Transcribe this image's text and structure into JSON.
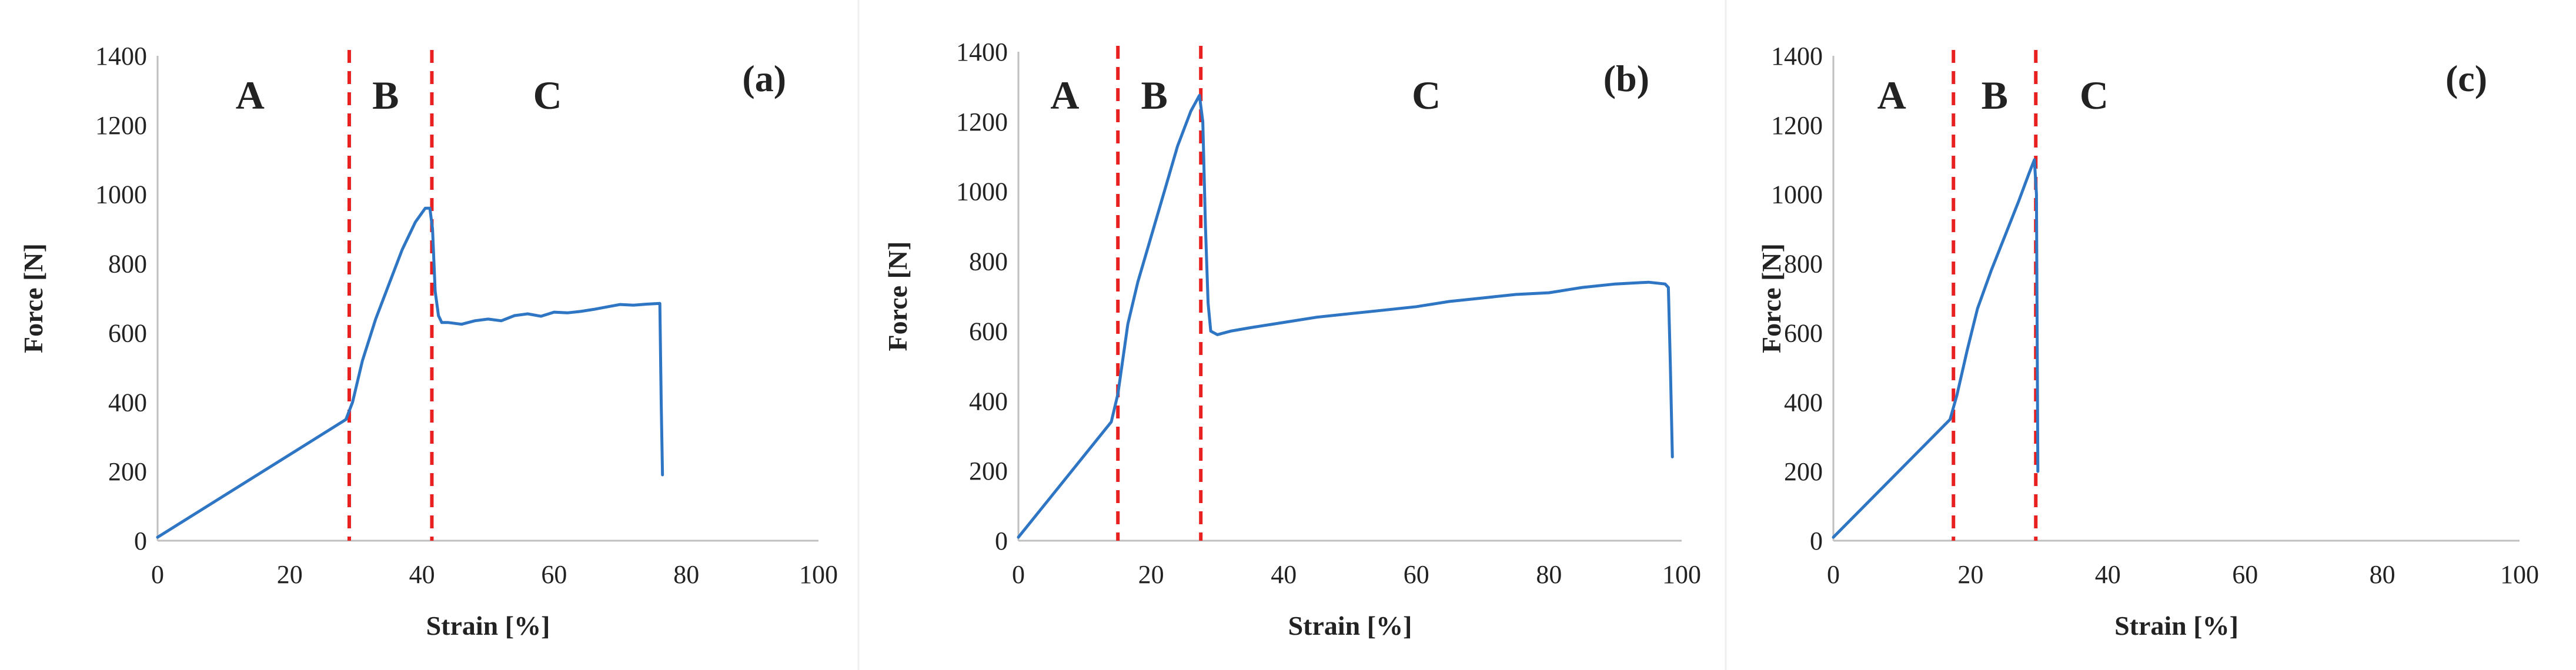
{
  "chart_data": [
    {
      "type": "line",
      "panel_label": "(a)",
      "xlabel": "Strain  [%]",
      "ylabel": "Force [N]",
      "xlim": [
        0,
        100
      ],
      "ylim": [
        0,
        1400
      ],
      "x_ticks": [
        0,
        20,
        40,
        60,
        80,
        100
      ],
      "y_ticks": [
        0,
        200,
        400,
        600,
        800,
        1000,
        1200,
        1400
      ],
      "line_color": "#2e75c4",
      "divider_color": "#e82020",
      "dividers": [
        29,
        41.5
      ],
      "regions": [
        {
          "label": "A",
          "x": 14
        },
        {
          "label": "B",
          "x": 34.5
        },
        {
          "label": "C",
          "x": 59
        }
      ],
      "series": [
        {
          "name": "Force",
          "x": [
            0,
            28.5,
            29.5,
            31,
            33,
            35,
            37,
            39,
            40.5,
            41.2,
            41.6,
            42,
            42.5,
            43,
            44,
            46,
            48,
            50,
            52,
            54,
            56,
            58,
            60,
            62,
            64,
            66,
            68,
            70,
            72,
            74,
            76,
            76.2,
            76.4
          ],
          "y": [
            10,
            350,
            400,
            520,
            640,
            740,
            840,
            920,
            960,
            960,
            900,
            720,
            650,
            630,
            630,
            625,
            635,
            640,
            635,
            650,
            655,
            648,
            660,
            658,
            662,
            668,
            675,
            682,
            680,
            683,
            685,
            400,
            190
          ]
        }
      ]
    },
    {
      "type": "line",
      "panel_label": "(b)",
      "xlabel": "Strain  [%]",
      "ylabel": "Force [N]",
      "xlim": [
        0,
        100
      ],
      "ylim": [
        0,
        1400
      ],
      "x_ticks": [
        0,
        20,
        40,
        60,
        80,
        100
      ],
      "y_ticks": [
        0,
        200,
        400,
        600,
        800,
        1000,
        1200,
        1400
      ],
      "line_color": "#2e75c4",
      "divider_color": "#e82020",
      "dividers": [
        15,
        27.5
      ],
      "regions": [
        {
          "label": "A",
          "x": 7
        },
        {
          "label": "B",
          "x": 20.5
        },
        {
          "label": "C",
          "x": 61.5
        }
      ],
      "series": [
        {
          "name": "Force",
          "x": [
            0,
            14,
            15,
            16.5,
            18,
            20,
            22,
            24,
            26,
            27.3,
            27.8,
            28.2,
            28.6,
            29,
            30,
            32,
            35,
            40,
            45,
            50,
            55,
            60,
            65,
            70,
            75,
            80,
            85,
            90,
            95,
            97.5,
            98,
            98.3,
            98.6
          ],
          "y": [
            10,
            340,
            420,
            620,
            740,
            870,
            1000,
            1130,
            1230,
            1275,
            1200,
            900,
            680,
            600,
            590,
            600,
            610,
            625,
            640,
            650,
            660,
            670,
            685,
            695,
            705,
            710,
            725,
            735,
            740,
            735,
            725,
            500,
            240
          ]
        }
      ]
    },
    {
      "type": "line",
      "panel_label": "(c)",
      "xlabel": "Strain  [%]",
      "ylabel": "Force [N]",
      "xlim": [
        0,
        100
      ],
      "ylim": [
        0,
        1400
      ],
      "x_ticks": [
        0,
        20,
        40,
        60,
        80,
        100
      ],
      "y_ticks": [
        0,
        200,
        400,
        600,
        800,
        1000,
        1200,
        1400
      ],
      "line_color": "#2e75c4",
      "divider_color": "#e82020",
      "dividers": [
        17.5,
        29.5
      ],
      "regions": [
        {
          "label": "A",
          "x": 8.5
        },
        {
          "label": "B",
          "x": 23.5
        },
        {
          "label": "C",
          "x": 38
        }
      ],
      "series": [
        {
          "name": "Force",
          "x": [
            0,
            17,
            18,
            19.5,
            21,
            23,
            25,
            27,
            28.5,
            29.3,
            29.6,
            29.7,
            29.8
          ],
          "y": [
            10,
            350,
            420,
            550,
            670,
            780,
            880,
            980,
            1060,
            1100,
            1000,
            600,
            200
          ]
        }
      ]
    }
  ]
}
